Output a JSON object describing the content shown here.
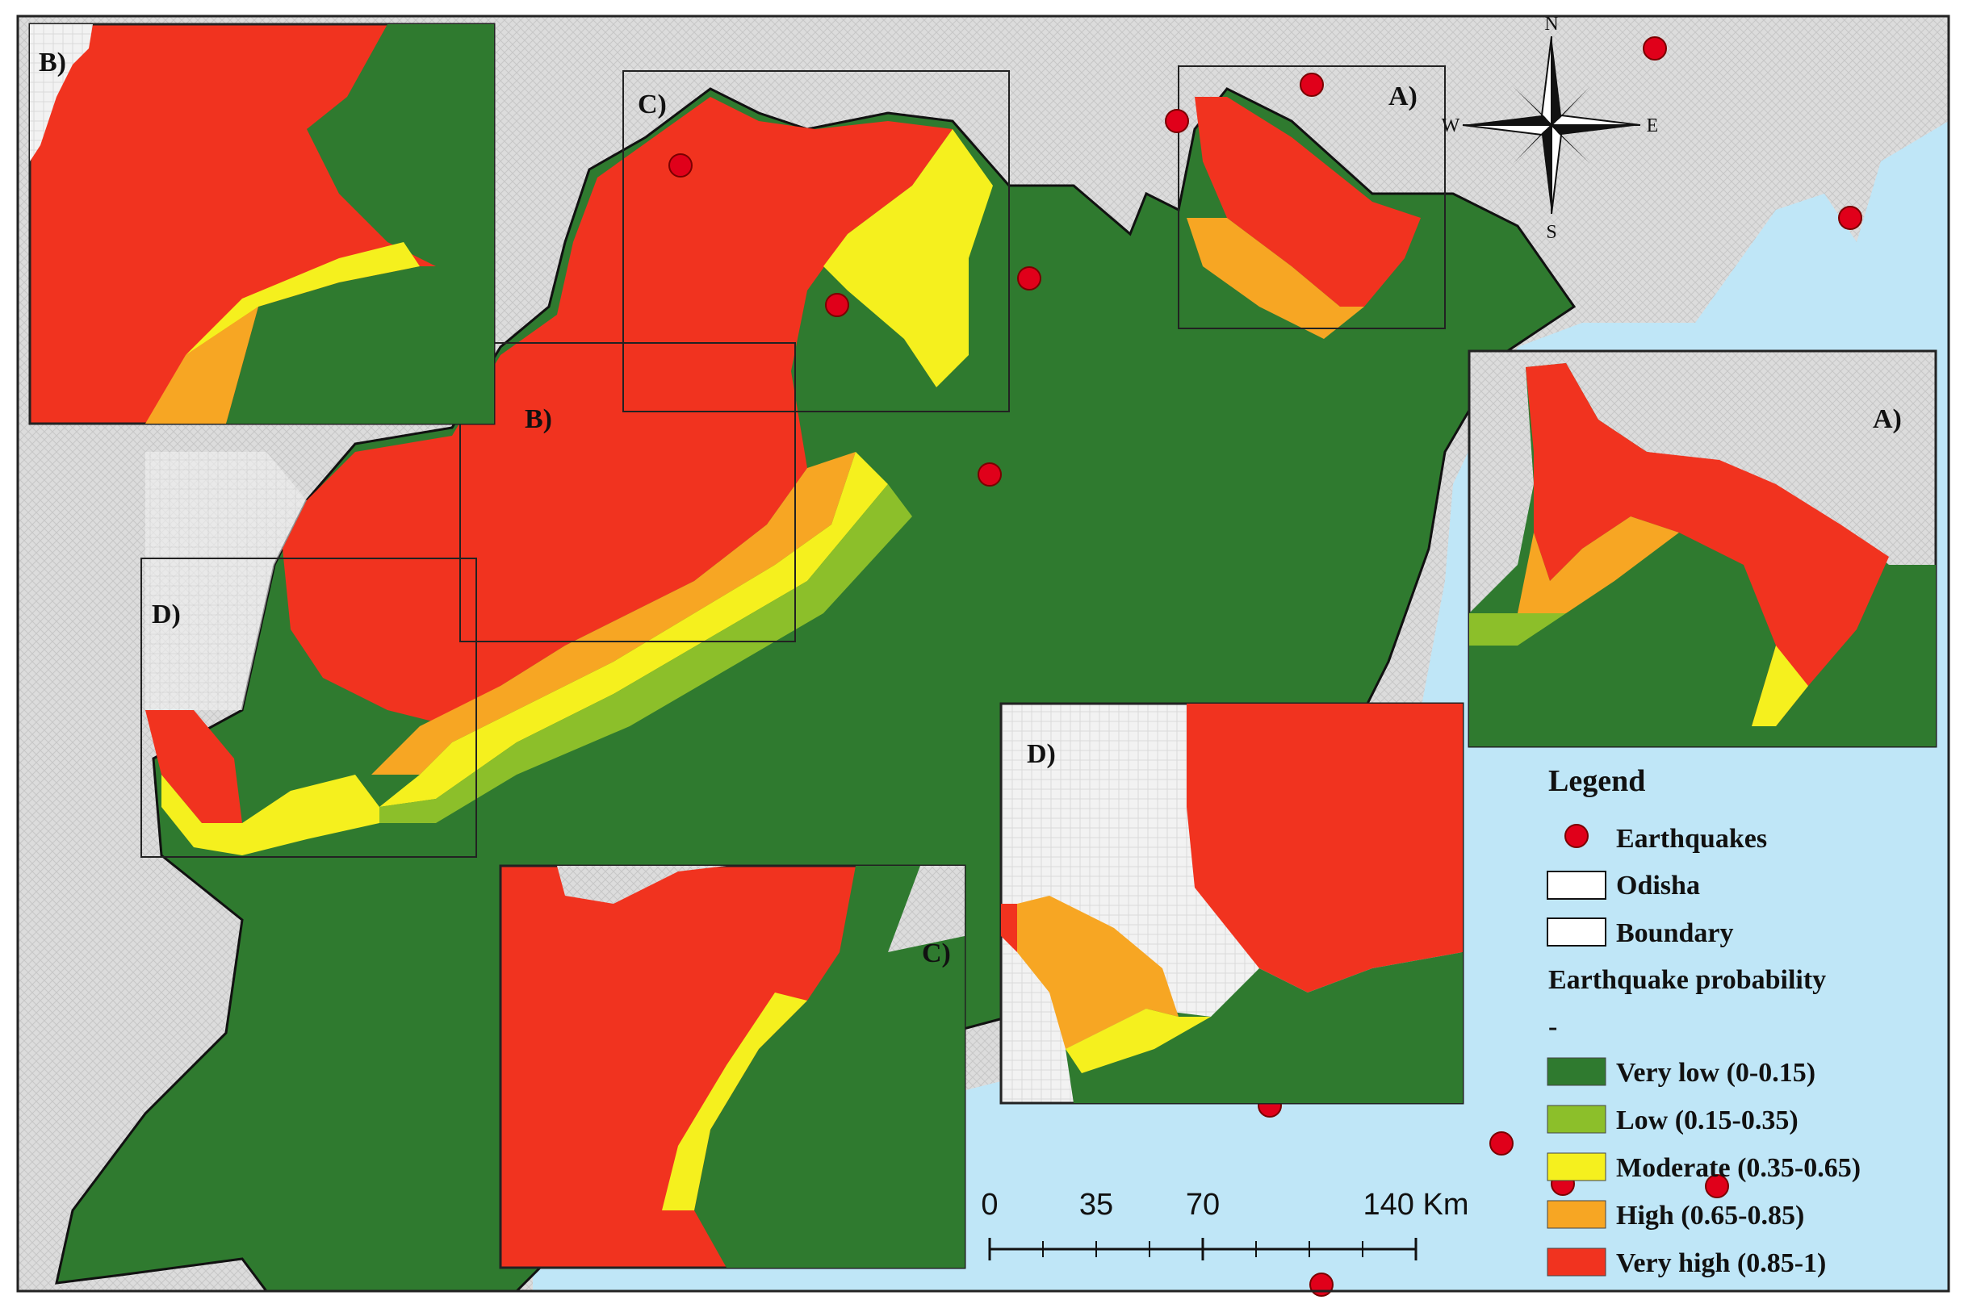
{
  "map": {
    "compass": {
      "n": "N",
      "s": "S",
      "e": "E",
      "w": "W"
    },
    "zone_labels": [
      "A)",
      "B)",
      "C)",
      "D)"
    ],
    "inset_labels": [
      "A)",
      "B)",
      "C)",
      "D)"
    ]
  },
  "legend": {
    "title": "Legend",
    "earthquakes": "Earthquakes",
    "odisha": "Odisha",
    "boundary": "Boundary",
    "probability_title": "Earthquake probability",
    "dash": "-",
    "classes": [
      {
        "label": "Very low (0-0.15)",
        "color": "#2f7a2f"
      },
      {
        "label": "Low (0.15-0.35)",
        "color": "#8cbf2a"
      },
      {
        "label": "Moderate (0.35-0.65)",
        "color": "#f5f01e"
      },
      {
        "label": "High (0.65-0.85)",
        "color": "#f7a623"
      },
      {
        "label": "Very high (0.85-1)",
        "color": "#f1331f"
      }
    ]
  },
  "scalebar": {
    "ticks": [
      "0",
      "35",
      "70",
      "140 Km"
    ]
  },
  "colors": {
    "very_low": "#2f7a2f",
    "low": "#8cbf2a",
    "moderate": "#f5f01e",
    "high": "#f7a623",
    "very_high": "#f1331f",
    "sea": "#bfe6f7",
    "land": "#d9d9d9",
    "earthquake": "#e0001a"
  }
}
